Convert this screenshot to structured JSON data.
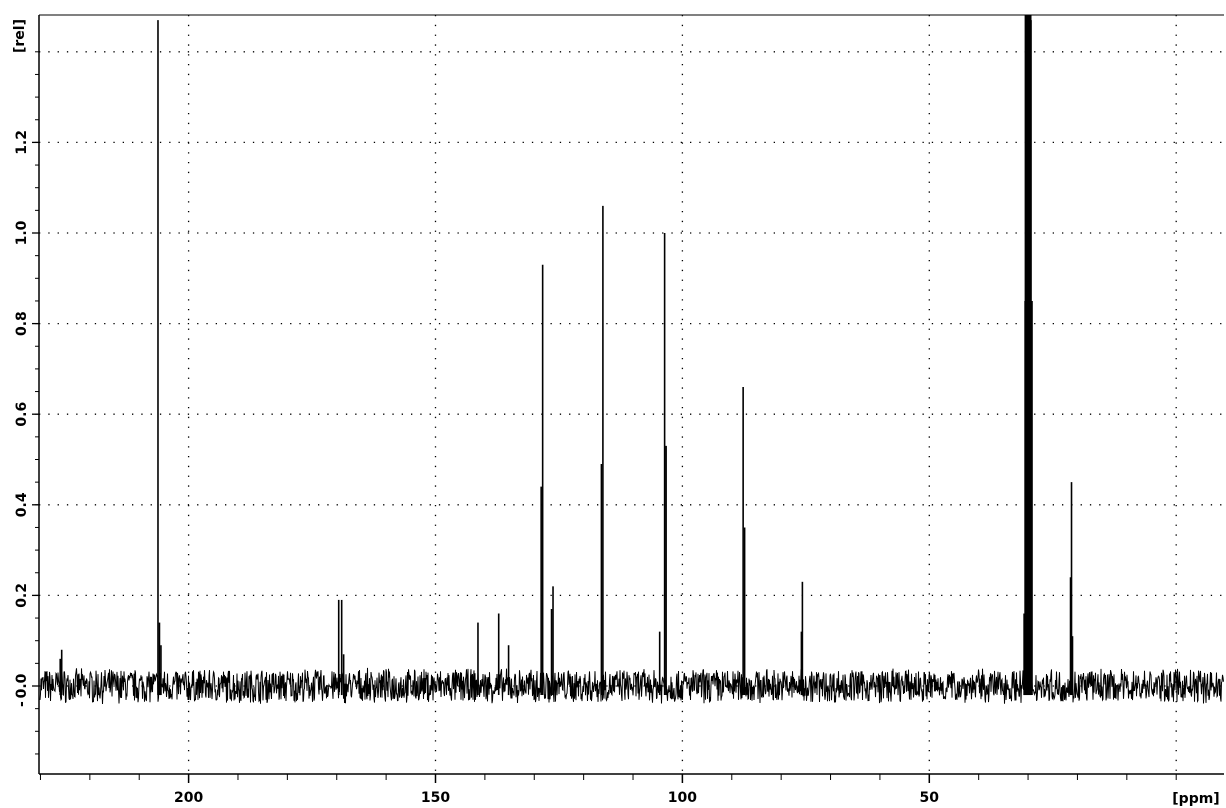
{
  "chart_data": {
    "type": "line",
    "title": "",
    "xlabel": "[ppm]",
    "ylabel": "[rel]",
    "x_reversed": true,
    "xlim": [
      233,
      190
    ],
    "ylim": [
      -0.19,
      1.47
    ],
    "xticks": [
      200,
      150,
      100,
      50
    ],
    "xtick_labels": [
      "200",
      "150",
      "100",
      "50"
    ],
    "yticks": [
      0.0,
      0.2,
      0.4,
      0.6,
      0.8,
      1.0,
      1.2
    ],
    "ytick_labels": [
      "0.0",
      "0.2",
      "0.4",
      "0.6",
      "0.8",
      "1.0",
      "1.2"
    ],
    "grid": "dotted",
    "noise_level": 0.035,
    "baseline": 0.0,
    "series": [
      {
        "peaks": [
          {
            "ppm": 206.2,
            "height": 1.47
          },
          {
            "ppm": 205.9,
            "height": 0.14
          },
          {
            "ppm": 205.6,
            "height": 0.09
          },
          {
            "ppm": 169.6,
            "height": 0.19
          },
          {
            "ppm": 169.0,
            "height": 0.19
          },
          {
            "ppm": 168.6,
            "height": 0.07
          },
          {
            "ppm": 141.4,
            "height": 0.14
          },
          {
            "ppm": 137.2,
            "height": 0.16
          },
          {
            "ppm": 135.2,
            "height": 0.09
          },
          {
            "ppm": 128.3,
            "height": 0.93
          },
          {
            "ppm": 128.6,
            "height": 0.44
          },
          {
            "ppm": 126.2,
            "height": 0.22
          },
          {
            "ppm": 126.5,
            "height": 0.17
          },
          {
            "ppm": 116.1,
            "height": 1.06
          },
          {
            "ppm": 116.4,
            "height": 0.49
          },
          {
            "ppm": 104.6,
            "height": 0.12
          },
          {
            "ppm": 103.6,
            "height": 1.0
          },
          {
            "ppm": 103.3,
            "height": 0.53
          },
          {
            "ppm": 87.7,
            "height": 0.66
          },
          {
            "ppm": 87.4,
            "height": 0.35
          },
          {
            "ppm": 75.7,
            "height": 0.23
          },
          {
            "ppm": 75.9,
            "height": 0.12
          },
          {
            "ppm": 30.6,
            "height": 0.85
          },
          {
            "ppm": 30.4,
            "height": 1.47
          },
          {
            "ppm": 30.2,
            "height": 1.47
          },
          {
            "ppm": 30.0,
            "height": 1.47
          },
          {
            "ppm": 29.8,
            "height": 1.47
          },
          {
            "ppm": 29.6,
            "height": 1.47
          },
          {
            "ppm": 29.4,
            "height": 1.47
          },
          {
            "ppm": 29.2,
            "height": 0.85
          },
          {
            "ppm": 30.8,
            "height": 0.16
          },
          {
            "ppm": 21.2,
            "height": 0.45
          },
          {
            "ppm": 21.4,
            "height": 0.24
          },
          {
            "ppm": 21.0,
            "height": 0.11
          },
          {
            "ppm": 225.7,
            "height": 0.08
          },
          {
            "ppm": 226.0,
            "height": 0.06
          }
        ]
      }
    ]
  }
}
